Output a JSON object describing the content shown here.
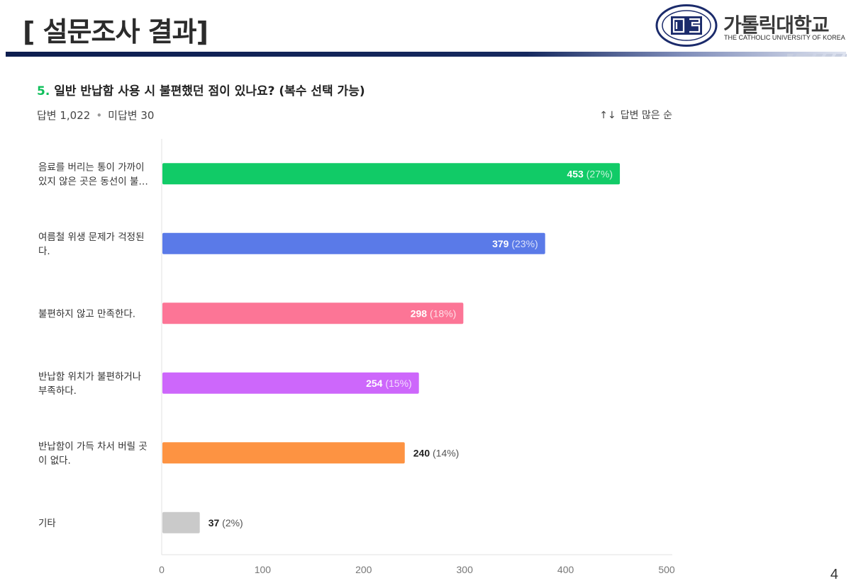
{
  "header": {
    "title": "[ 설문조사 결과]",
    "logo_name_ko": "가톨릭대학교",
    "logo_name_en": "THE CATHOLIC UNIVERSITY OF KOREA",
    "seal_text_top": "CATHOLIC",
    "seal_text_bottom": "UNIVERSITY OF KOREA"
  },
  "question": {
    "number": "5.",
    "text": "일반 반납함 사용 시 불편했던 점이 있나요? (복수 선택 가능)"
  },
  "meta": {
    "answered": "답변 1,022",
    "unanswered": "미답변 30",
    "separator": "•",
    "sort_icon": "↑↓",
    "sort_label": "답변 많은 순"
  },
  "chart_data": {
    "type": "bar",
    "orientation": "horizontal",
    "categories": [
      [
        "음료를 버리는 통이 가까이",
        "있지 않은 곳은 동선이 불…"
      ],
      [
        "여름철 위생 문제가 걱정된",
        "다."
      ],
      [
        "불편하지 않고 만족한다."
      ],
      [
        "반납함 위치가 불편하거나",
        "부족하다."
      ],
      [
        "반납함이 가득 차서 버릴 곳",
        "이 없다."
      ],
      [
        "기타"
      ]
    ],
    "values": [
      453,
      379,
      298,
      254,
      240,
      37
    ],
    "percent_labels": [
      "(27%)",
      "(23%)",
      "(18%)",
      "(15%)",
      "(14%)",
      "(2%)"
    ],
    "colors": [
      "#11cb67",
      "#5a7ae8",
      "#fc7596",
      "#cd67fb",
      "#fd9342",
      "#cacaca"
    ],
    "xlim": [
      0,
      500
    ],
    "xticks": [
      0,
      100,
      200,
      300,
      400,
      500
    ],
    "grid": false,
    "legend": "none"
  },
  "page_number": "4"
}
